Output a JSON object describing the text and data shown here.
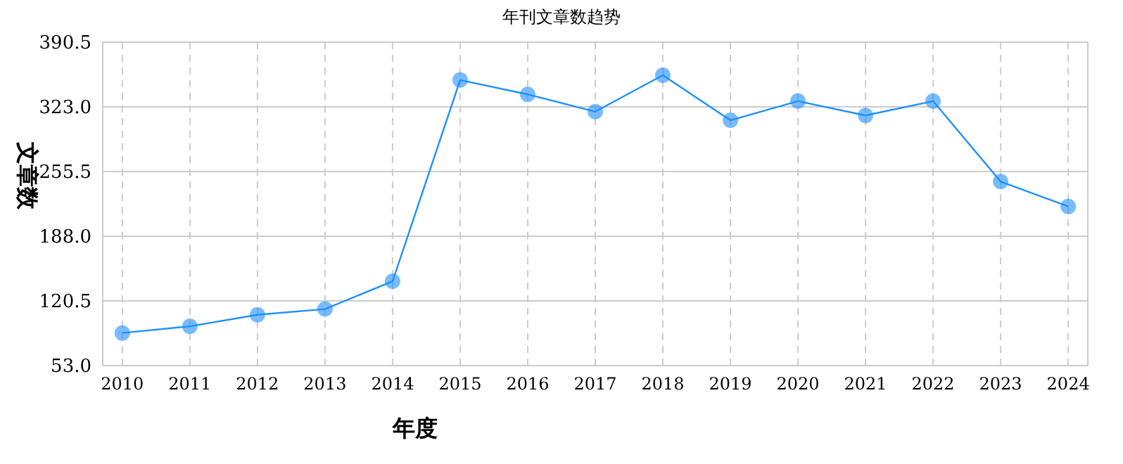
{
  "chart_data": {
    "type": "line",
    "title": "年刊文章数趋势",
    "xlabel": "年度",
    "ylabel": "文章数",
    "categories": [
      "2010",
      "2011",
      "2012",
      "2013",
      "2014",
      "2015",
      "2016",
      "2017",
      "2018",
      "2019",
      "2020",
      "2021",
      "2022",
      "2023",
      "2024"
    ],
    "series": [
      {
        "color": "#1e90ff",
        "values": [
          87,
          94,
          106,
          112,
          141,
          351,
          336,
          318,
          356,
          309,
          329,
          314,
          329,
          245,
          219
        ]
      }
    ],
    "ylim": [
      53,
      390.5
    ],
    "yticks": [
      {
        "value": 53,
        "label": "53.0"
      },
      {
        "value": 120.5,
        "label": "120.5"
      },
      {
        "value": 188,
        "label": "188.0"
      },
      {
        "value": 255.5,
        "label": "255.5"
      },
      {
        "value": 323,
        "label": "323.0"
      },
      {
        "value": 390.5,
        "label": "390.5"
      }
    ],
    "grid": true,
    "marker": "circle",
    "line_style": "solid"
  }
}
